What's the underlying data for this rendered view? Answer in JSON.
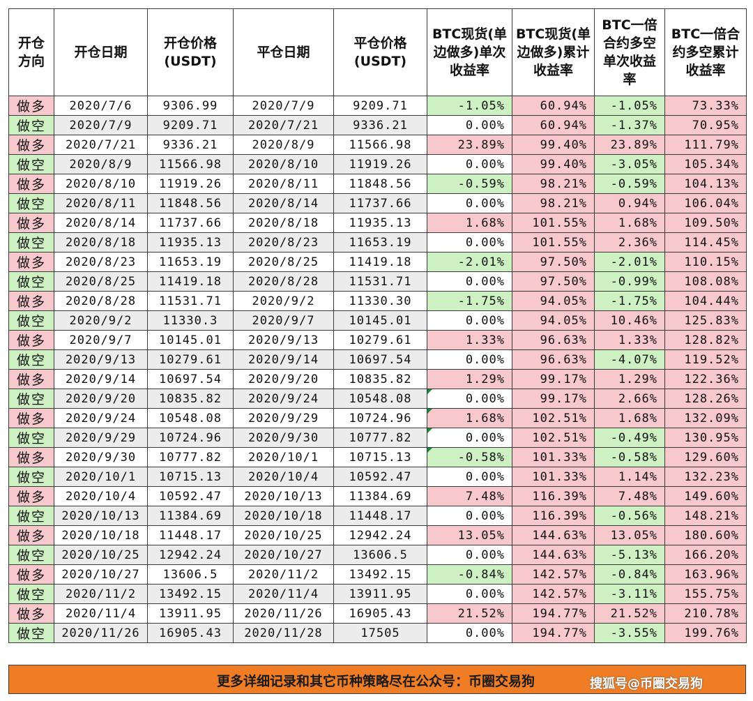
{
  "header": [
    "开仓方向",
    "开仓日期",
    "开仓价格(USDT)",
    "平仓日期",
    "平仓价格(USDT)",
    "BTC现货(单边做多)单次收益率",
    "BTC现货(单边做多)累计收益率",
    "BTC一倍合约多空单次收益率",
    "BTC一倍合约多空累计收益率"
  ],
  "rows": [
    [
      "做多",
      "2020/7/6",
      "9306.99",
      "2020/7/9",
      "9209.71",
      "-1.05%",
      "60.94%",
      "-1.05%",
      "73.33%"
    ],
    [
      "做空",
      "2020/7/9",
      "9209.71",
      "2020/7/21",
      "9336.21",
      "0.00%",
      "60.94%",
      "-1.37%",
      "70.95%"
    ],
    [
      "做多",
      "2020/7/21",
      "9336.21",
      "2020/8/9",
      "11566.98",
      "23.89%",
      "99.40%",
      "23.89%",
      "111.79%"
    ],
    [
      "做空",
      "2020/8/9",
      "11566.98",
      "2020/8/10",
      "11919.26",
      "0.00%",
      "99.40%",
      "-3.05%",
      "105.34%"
    ],
    [
      "做多",
      "2020/8/10",
      "11919.26",
      "2020/8/11",
      "11848.56",
      "-0.59%",
      "98.21%",
      "-0.59%",
      "104.13%"
    ],
    [
      "做空",
      "2020/8/11",
      "11848.56",
      "2020/8/14",
      "11737.66",
      "0.00%",
      "98.21%",
      "0.94%",
      "106.04%"
    ],
    [
      "做多",
      "2020/8/14",
      "11737.66",
      "2020/8/18",
      "11935.13",
      "1.68%",
      "101.55%",
      "1.68%",
      "109.50%"
    ],
    [
      "做空",
      "2020/8/18",
      "11935.13",
      "2020/8/23",
      "11653.19",
      "0.00%",
      "101.55%",
      "2.36%",
      "114.45%"
    ],
    [
      "做多",
      "2020/8/23",
      "11653.19",
      "2020/8/25",
      "11419.18",
      "-2.01%",
      "97.50%",
      "-2.01%",
      "110.15%"
    ],
    [
      "做空",
      "2020/8/25",
      "11419.18",
      "2020/8/28",
      "11531.71",
      "0.00%",
      "97.50%",
      "-0.99%",
      "108.08%"
    ],
    [
      "做多",
      "2020/8/28",
      "11531.71",
      "2020/9/2",
      "11330.30",
      "-1.75%",
      "94.05%",
      "-1.75%",
      "104.44%"
    ],
    [
      "做空",
      "2020/9/2",
      "11330.3",
      "2020/9/7",
      "10145.01",
      "0.00%",
      "94.05%",
      "10.46%",
      "125.83%"
    ],
    [
      "做多",
      "2020/9/7",
      "10145.01",
      "2020/9/13",
      "10279.61",
      "1.33%",
      "96.63%",
      "1.33%",
      "128.82%"
    ],
    [
      "做空",
      "2020/9/13",
      "10279.61",
      "2020/9/14",
      "10697.54",
      "0.00%",
      "96.63%",
      "-4.07%",
      "119.52%"
    ],
    [
      "做多",
      "2020/9/14",
      "10697.54",
      "2020/9/20",
      "10835.82",
      "1.29%",
      "99.17%",
      "1.29%",
      "122.36%"
    ],
    [
      "做空",
      "2020/9/20",
      "10835.82",
      "2020/9/24",
      "10548.08",
      "0.00%",
      "99.17%",
      "2.66%",
      "128.26%"
    ],
    [
      "做多",
      "2020/9/24",
      "10548.08",
      "2020/9/29",
      "10724.96",
      "1.68%",
      "102.51%",
      "1.68%",
      "132.09%"
    ],
    [
      "做空",
      "2020/9/29",
      "10724.96",
      "2020/9/30",
      "10777.82",
      "0.00%",
      "102.51%",
      "-0.49%",
      "130.95%"
    ],
    [
      "做多",
      "2020/9/30",
      "10777.82",
      "2020/10/1",
      "10715.13",
      "-0.58%",
      "101.33%",
      "-0.58%",
      "129.60%"
    ],
    [
      "做空",
      "2020/10/1",
      "10715.13",
      "2020/10/4",
      "10592.47",
      "0.00%",
      "101.33%",
      "1.14%",
      "132.23%"
    ],
    [
      "做多",
      "2020/10/4",
      "10592.47",
      "2020/10/13",
      "11384.69",
      "7.48%",
      "116.39%",
      "7.48%",
      "149.60%"
    ],
    [
      "做空",
      "2020/10/13",
      "11384.69",
      "2020/10/18",
      "11448.17",
      "0.00%",
      "116.39%",
      "-0.56%",
      "148.21%"
    ],
    [
      "做多",
      "2020/10/18",
      "11448.17",
      "2020/10/25",
      "12942.24",
      "13.05%",
      "144.63%",
      "13.05%",
      "180.60%"
    ],
    [
      "做空",
      "2020/10/25",
      "12942.24",
      "2020/10/27",
      "13606.5",
      "0.00%",
      "144.63%",
      "-5.13%",
      "166.20%"
    ],
    [
      "做多",
      "2020/10/27",
      "13606.5",
      "2020/11/2",
      "13492.15",
      "-0.84%",
      "142.57%",
      "-0.84%",
      "163.96%"
    ],
    [
      "做空",
      "2020/11/2",
      "13492.15",
      "2020/11/4",
      "13911.95",
      "0.00%",
      "142.57%",
      "-3.11%",
      "155.75%"
    ],
    [
      "做多",
      "2020/11/4",
      "13911.95",
      "2020/11/26",
      "16905.43",
      "21.52%",
      "194.77%",
      "21.52%",
      "210.78%"
    ],
    [
      "做空",
      "2020/11/26",
      "16905.43",
      "2020/11/28",
      "17505",
      "0.00%",
      "194.77%",
      "-3.55%",
      "199.76%"
    ]
  ],
  "footer_text": "更多详细记录和其它币种策略尽在公众号：币圈交易狗",
  "watermark": "搜狐号@币圈交易狗",
  "colors": {
    "positive": "#f7c8cc",
    "negative": "#cdf1c2",
    "zebra": "#ececec",
    "footer": "#ee7d25"
  }
}
